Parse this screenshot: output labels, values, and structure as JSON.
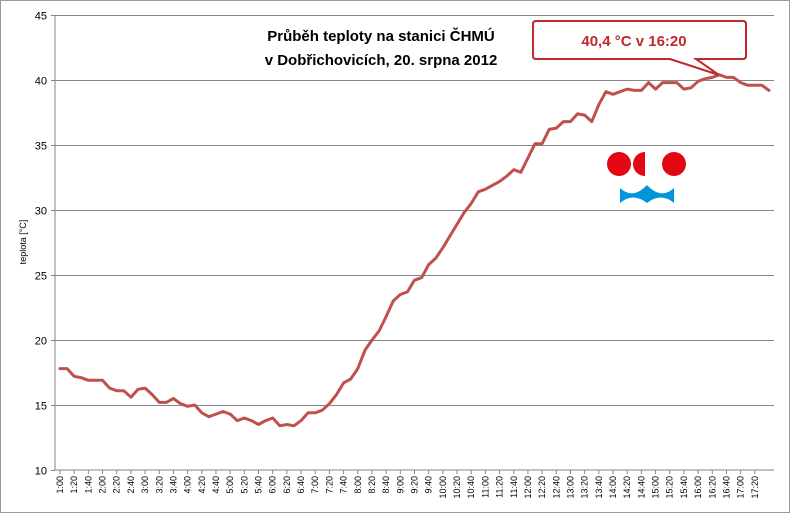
{
  "chart_data": {
    "type": "line",
    "title": "Průběh teploty na stanici ČHMÚ",
    "subtitle": "v Dobřichovicích, 20. srpna 2012",
    "ylabel": "teplota [°C]",
    "xlabel": "",
    "ylim": [
      10,
      45
    ],
    "yticks": [
      "10",
      "15",
      "20",
      "25",
      "30",
      "35",
      "40",
      "45"
    ],
    "grid": true,
    "annotation": "40,4 °C v 16:20",
    "xticks": [
      "1:00",
      "1:20",
      "1:40",
      "2:00",
      "2:20",
      "2:40",
      "3:00",
      "3:20",
      "3:40",
      "4:00",
      "4:20",
      "4:40",
      "5:00",
      "5:20",
      "5:40",
      "6:00",
      "6:20",
      "6:40",
      "7:00",
      "7:20",
      "7:40",
      "8:00",
      "8:20",
      "8:40",
      "9:00",
      "9:20",
      "9:40",
      "10:00",
      "10:20",
      "10:40",
      "11:00",
      "11:20",
      "11:40",
      "12:00",
      "12:20",
      "12:40",
      "13:00",
      "13:20",
      "13:40",
      "14:00",
      "14:20",
      "14:40",
      "15:00",
      "15:20",
      "15:40",
      "16:00",
      "16:20",
      "16:40",
      "17:00",
      "17:20"
    ],
    "series": [
      {
        "color": "#c0504d",
        "values": [
          17.8,
          17.8,
          17.2,
          17.1,
          16.9,
          16.9,
          16.9,
          16.3,
          16.1,
          16.1,
          15.6,
          16.2,
          16.3,
          15.8,
          15.2,
          15.2,
          15.5,
          15.1,
          14.9,
          15.0,
          14.4,
          14.1,
          14.3,
          14.5,
          14.3,
          13.8,
          14.0,
          13.8,
          13.5,
          13.8,
          14.0,
          13.4,
          13.5,
          13.4,
          13.8,
          14.4,
          14.4,
          14.6,
          15.1,
          15.8,
          16.7,
          17.0,
          17.8,
          19.2,
          20.0,
          20.7,
          21.8,
          23.0,
          23.5,
          23.7,
          24.6,
          24.8,
          25.8,
          26.3,
          27.1,
          28.0,
          28.9,
          29.8,
          30.5,
          31.4,
          31.6,
          31.9,
          32.2,
          32.6,
          33.1,
          32.9,
          34.0,
          35.1,
          35.1,
          36.2,
          36.3,
          36.8,
          36.8,
          37.4,
          37.3,
          36.8,
          38.1,
          39.1,
          38.9,
          39.1,
          39.3,
          39.2,
          39.2,
          39.8,
          39.3,
          39.8,
          39.8,
          39.8,
          39.3,
          39.4,
          39.9,
          40.1,
          40.2,
          40.4,
          40.2,
          40.2,
          39.8,
          39.6,
          39.6,
          39.6,
          39.2
        ]
      }
    ]
  },
  "logo": {
    "name": "chmu-logo",
    "colors": [
      "#e30613",
      "#0095db"
    ]
  }
}
